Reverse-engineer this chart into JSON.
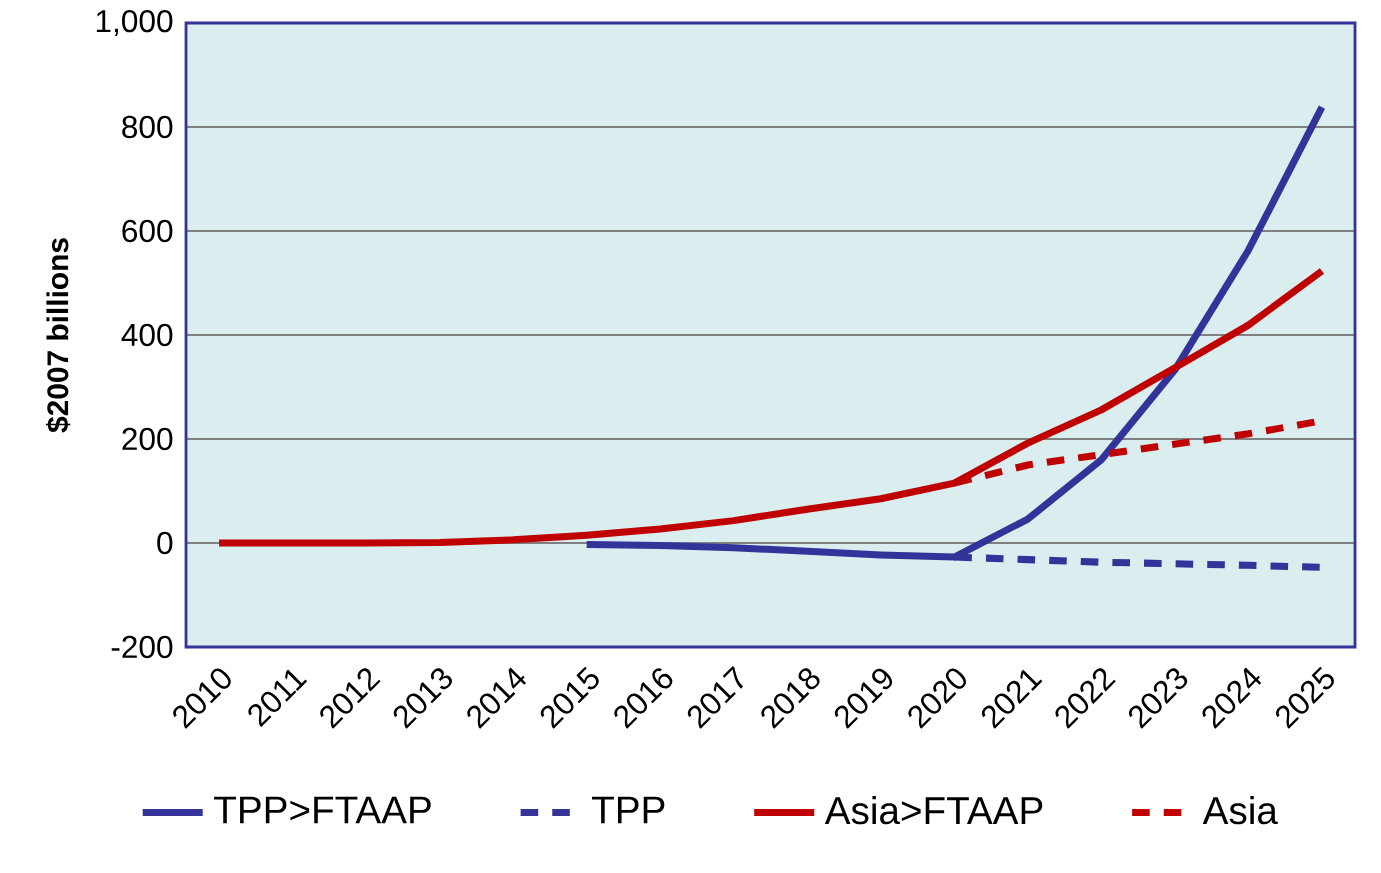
{
  "chart_data": {
    "type": "line",
    "ylabel": "$2007 billions",
    "categories": [
      "2010",
      "2011",
      "2012",
      "2013",
      "2014",
      "2015",
      "2016",
      "2017",
      "2018",
      "2019",
      "2020",
      "2021",
      "2022",
      "2023",
      "2024",
      "2025"
    ],
    "series": [
      {
        "name": "TPP>FTAAP",
        "color": "#333399",
        "line_style": "solid",
        "values": [
          null,
          null,
          null,
          null,
          null,
          -3,
          -5,
          -9,
          -16,
          -23,
          -27,
          46,
          160,
          333,
          563,
          838
        ]
      },
      {
        "name": "TPP",
        "color": "#333399",
        "line_style": "dashed",
        "values": [
          null,
          null,
          null,
          null,
          null,
          null,
          null,
          null,
          null,
          null,
          -27,
          -32,
          -37,
          -40,
          -43,
          -47
        ]
      },
      {
        "name": "Asia>FTAAP",
        "color": "#c00000",
        "line_style": "solid",
        "values": [
          0,
          0,
          0,
          1,
          6,
          15,
          27,
          43,
          65,
          85,
          115,
          192,
          256,
          337,
          419,
          523
        ]
      },
      {
        "name": "Asia",
        "color": "#c00000",
        "line_style": "dashed",
        "values": [
          null,
          null,
          null,
          null,
          null,
          null,
          null,
          null,
          null,
          null,
          115,
          150,
          170,
          190,
          210,
          235
        ]
      }
    ],
    "ylim": [
      -200,
      1000
    ],
    "yticks": [
      -200,
      0,
      200,
      400,
      600,
      800,
      {
        "value": 1000,
        "label": "1,000"
      }
    ],
    "grid": "y",
    "legend": "bottom",
    "marker": "none"
  }
}
